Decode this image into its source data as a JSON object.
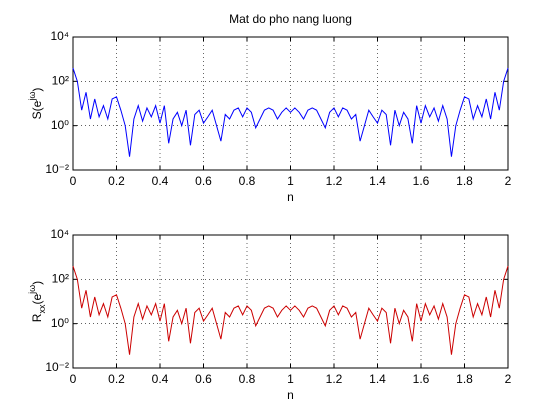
{
  "chart_data": [
    {
      "type": "line",
      "title": "Mat do pho nang luong",
      "xlabel": "n",
      "ylabel": [
        {
          "text": "S(e"
        },
        {
          "text": "jω",
          "shift": "super"
        },
        {
          "text": ")"
        }
      ],
      "x": [
        0,
        0.02,
        0.04,
        0.06,
        0.08,
        0.1,
        0.12,
        0.14,
        0.16,
        0.18,
        0.2,
        0.22,
        0.24,
        0.26,
        0.28,
        0.3,
        0.32,
        0.34,
        0.36,
        0.38,
        0.4,
        0.42,
        0.44,
        0.46,
        0.48,
        0.5,
        0.52,
        0.54,
        0.56,
        0.58,
        0.6,
        0.62,
        0.64,
        0.66,
        0.68,
        0.7,
        0.72,
        0.74,
        0.76,
        0.78,
        0.8,
        0.82,
        0.84,
        0.86,
        0.88,
        0.9,
        0.92,
        0.94,
        0.96,
        0.98,
        1,
        1.02,
        1.04,
        1.06,
        1.08,
        1.1,
        1.12,
        1.14,
        1.16,
        1.18,
        1.2,
        1.22,
        1.24,
        1.26,
        1.28,
        1.3,
        1.32,
        1.34,
        1.36,
        1.38,
        1.4,
        1.42,
        1.44,
        1.46,
        1.48,
        1.5,
        1.52,
        1.54,
        1.56,
        1.58,
        1.6,
        1.62,
        1.64,
        1.66,
        1.68,
        1.7,
        1.72,
        1.74,
        1.76,
        1.78,
        1.8,
        1.82,
        1.84,
        1.86,
        1.88,
        1.9,
        1.92,
        1.94,
        1.96,
        1.98,
        2
      ],
      "series": [
        {
          "color": "#0000ff",
          "values": [
            398,
            100,
            5,
            32,
            2,
            16,
            2.5,
            8,
            2,
            16,
            20,
            5,
            1,
            0.04,
            2,
            8,
            1.6,
            6.3,
            2.5,
            8,
            1.3,
            8,
            0.16,
            2,
            4,
            1,
            5,
            0.13,
            3.2,
            5,
            1.3,
            2.5,
            5,
            1,
            0.2,
            3.2,
            2,
            5,
            6.3,
            2.5,
            6.3,
            4,
            0.8,
            2,
            5,
            6.3,
            5,
            2,
            4,
            6.3,
            4,
            6.3,
            4,
            2,
            5,
            6.3,
            5,
            2,
            0.8,
            4,
            6.3,
            2.5,
            6.3,
            5,
            2,
            3.2,
            0.2,
            1,
            5,
            2.5,
            1.3,
            5,
            3.2,
            0.13,
            5,
            1,
            4,
            2,
            0.16,
            8,
            1.3,
            8,
            2.5,
            6.3,
            1.6,
            8,
            2,
            0.04,
            1,
            5,
            20,
            16,
            2,
            8,
            2.5,
            16,
            2,
            32,
            5,
            100,
            398
          ]
        }
      ],
      "xlim": [
        0,
        2
      ],
      "xticks": [
        0,
        0.2,
        0.4,
        0.6,
        0.8,
        1,
        1.2,
        1.4,
        1.6,
        1.8,
        2
      ],
      "ylim": [
        0.01,
        10000
      ],
      "log_y": true,
      "grid": true,
      "yticks": [
        {
          "value": 0.01,
          "label": "10⁻²"
        },
        {
          "value": 1,
          "label": "10⁰"
        },
        {
          "value": 100,
          "label": "10²"
        },
        {
          "value": 10000,
          "label": "10⁴"
        }
      ]
    },
    {
      "type": "line",
      "xlabel": "n",
      "ylabel": [
        {
          "text": "R"
        },
        {
          "text": "xx",
          "shift": "sub"
        },
        {
          "text": "(e"
        },
        {
          "text": "jω",
          "shift": "super"
        },
        {
          "text": ")"
        }
      ],
      "x": [
        0,
        0.02,
        0.04,
        0.06,
        0.08,
        0.1,
        0.12,
        0.14,
        0.16,
        0.18,
        0.2,
        0.22,
        0.24,
        0.26,
        0.28,
        0.3,
        0.32,
        0.34,
        0.36,
        0.38,
        0.4,
        0.42,
        0.44,
        0.46,
        0.48,
        0.5,
        0.52,
        0.54,
        0.56,
        0.58,
        0.6,
        0.62,
        0.64,
        0.66,
        0.68,
        0.7,
        0.72,
        0.74,
        0.76,
        0.78,
        0.8,
        0.82,
        0.84,
        0.86,
        0.88,
        0.9,
        0.92,
        0.94,
        0.96,
        0.98,
        1,
        1.02,
        1.04,
        1.06,
        1.08,
        1.1,
        1.12,
        1.14,
        1.16,
        1.18,
        1.2,
        1.22,
        1.24,
        1.26,
        1.28,
        1.3,
        1.32,
        1.34,
        1.36,
        1.38,
        1.4,
        1.42,
        1.44,
        1.46,
        1.48,
        1.5,
        1.52,
        1.54,
        1.56,
        1.58,
        1.6,
        1.62,
        1.64,
        1.66,
        1.68,
        1.7,
        1.72,
        1.74,
        1.76,
        1.78,
        1.8,
        1.82,
        1.84,
        1.86,
        1.88,
        1.9,
        1.92,
        1.94,
        1.96,
        1.98,
        2
      ],
      "series": [
        {
          "color": "#cc0000",
          "values": [
            398,
            100,
            5,
            32,
            2,
            16,
            2.5,
            8,
            2,
            16,
            20,
            5,
            1,
            0.04,
            2,
            8,
            1.6,
            6.3,
            2.5,
            8,
            1.3,
            8,
            0.16,
            2,
            4,
            1,
            5,
            0.13,
            3.2,
            5,
            1.3,
            2.5,
            5,
            1,
            0.2,
            3.2,
            2,
            5,
            6.3,
            2.5,
            6.3,
            4,
            0.8,
            2,
            5,
            6.3,
            5,
            2,
            4,
            6.3,
            4,
            6.3,
            4,
            2,
            5,
            6.3,
            5,
            2,
            0.8,
            4,
            6.3,
            2.5,
            6.3,
            5,
            2,
            3.2,
            0.2,
            1,
            5,
            2.5,
            1.3,
            5,
            3.2,
            0.13,
            5,
            1,
            4,
            2,
            0.16,
            8,
            1.3,
            8,
            2.5,
            6.3,
            1.6,
            8,
            2,
            0.04,
            1,
            5,
            20,
            16,
            2,
            8,
            2.5,
            16,
            2,
            32,
            5,
            100,
            398
          ]
        }
      ],
      "xlim": [
        0,
        2
      ],
      "xticks": [
        0,
        0.2,
        0.4,
        0.6,
        0.8,
        1,
        1.2,
        1.4,
        1.6,
        1.8,
        2
      ],
      "ylim": [
        0.01,
        10000
      ],
      "log_y": true,
      "grid": true,
      "yticks": [
        {
          "value": 0.01,
          "label": "10⁻²"
        },
        {
          "value": 1,
          "label": "10⁰"
        },
        {
          "value": 100,
          "label": "10²"
        },
        {
          "value": 10000,
          "label": "10⁴"
        }
      ]
    }
  ]
}
